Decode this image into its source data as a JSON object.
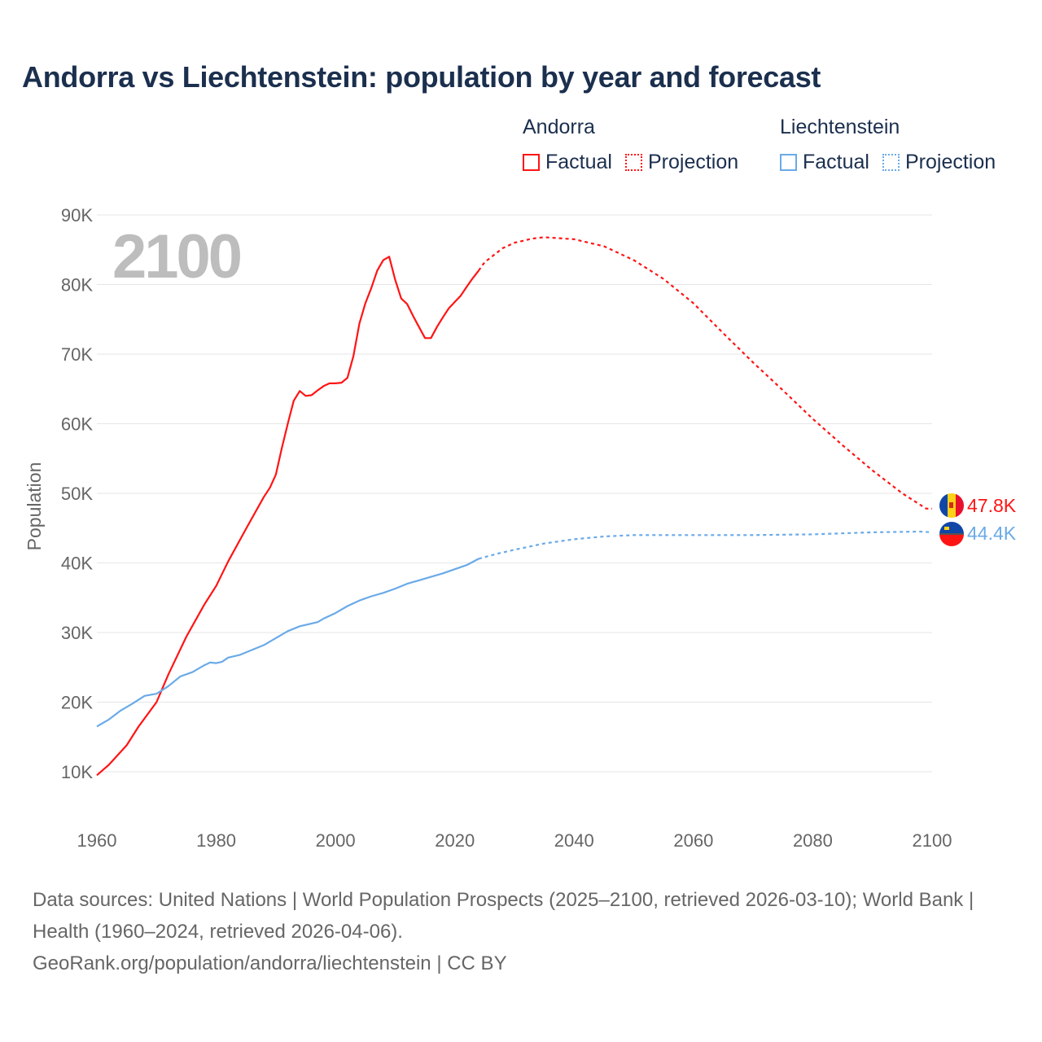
{
  "title": "Andorra vs Liechtenstein: population by year and forecast",
  "legend": {
    "groups": [
      {
        "name": "Andorra",
        "factual": "Factual",
        "projection": "Projection",
        "color": "#ff1414"
      },
      {
        "name": "Liechtenstein",
        "factual": "Factual",
        "projection": "Projection",
        "color": "#6aaae8"
      }
    ]
  },
  "year_overlay": "2100",
  "footer": {
    "sources": "Data sources: United Nations | World Population Prospects (2025–2100, retrieved 2026-03-10); World Bank | Health (1960–2024, retrieved 2026-04-06).",
    "credit": "GeoRank.org/population/andorra/liechtenstein | CC BY"
  },
  "chart_data": {
    "type": "line",
    "title": "Andorra vs Liechtenstein: population by year and forecast",
    "xlabel": "",
    "ylabel": "Population",
    "xlim": [
      1960,
      2100
    ],
    "ylim": [
      10000,
      90000
    ],
    "x_ticks": [
      1960,
      1980,
      2000,
      2020,
      2040,
      2060,
      2080,
      2100
    ],
    "x_tick_labels": [
      "1960",
      "1980",
      "2000",
      "2020",
      "2040",
      "2060",
      "2080",
      "2100"
    ],
    "y_ticks": [
      10000,
      20000,
      30000,
      40000,
      50000,
      60000,
      70000,
      80000,
      90000
    ],
    "y_tick_labels": [
      "10K",
      "20K",
      "30K",
      "40K",
      "50K",
      "60K",
      "70K",
      "80K",
      "90K"
    ],
    "grid": true,
    "legend_position": "top-right",
    "series": [
      {
        "name": "Andorra",
        "color": "#ff1414",
        "end_label": "47.8K",
        "factual": [
          [
            1960,
            9500
          ],
          [
            1962,
            11000
          ],
          [
            1965,
            13800
          ],
          [
            1967,
            16500
          ],
          [
            1970,
            20000
          ],
          [
            1972,
            24000
          ],
          [
            1975,
            29400
          ],
          [
            1978,
            34000
          ],
          [
            1980,
            36700
          ],
          [
            1982,
            40200
          ],
          [
            1985,
            44900
          ],
          [
            1988,
            49500
          ],
          [
            1989,
            50800
          ],
          [
            1990,
            52700
          ],
          [
            1991,
            56500
          ],
          [
            1992,
            60000
          ],
          [
            1993,
            63300
          ],
          [
            1994,
            64700
          ],
          [
            1995,
            64000
          ],
          [
            1996,
            64100
          ],
          [
            1997,
            64800
          ],
          [
            1998,
            65400
          ],
          [
            1999,
            65800
          ],
          [
            2000,
            65800
          ],
          [
            2001,
            65900
          ],
          [
            2002,
            66600
          ],
          [
            2003,
            69700
          ],
          [
            2004,
            74400
          ],
          [
            2005,
            77300
          ],
          [
            2006,
            79500
          ],
          [
            2007,
            82000
          ],
          [
            2008,
            83500
          ],
          [
            2009,
            84000
          ],
          [
            2010,
            80700
          ],
          [
            2011,
            78000
          ],
          [
            2012,
            77200
          ],
          [
            2013,
            75500
          ],
          [
            2014,
            73900
          ],
          [
            2015,
            72300
          ],
          [
            2016,
            72300
          ],
          [
            2017,
            73900
          ],
          [
            2018,
            75300
          ],
          [
            2019,
            76600
          ],
          [
            2020,
            77500
          ],
          [
            2021,
            78400
          ],
          [
            2022,
            79700
          ],
          [
            2023,
            80900
          ],
          [
            2024,
            82000
          ]
        ],
        "projection": [
          [
            2024,
            82000
          ],
          [
            2025,
            83200
          ],
          [
            2028,
            85200
          ],
          [
            2030,
            86000
          ],
          [
            2033,
            86600
          ],
          [
            2035,
            86800
          ],
          [
            2040,
            86500
          ],
          [
            2045,
            85500
          ],
          [
            2050,
            83500
          ],
          [
            2055,
            80800
          ],
          [
            2060,
            77300
          ],
          [
            2065,
            73000
          ],
          [
            2070,
            68800
          ],
          [
            2075,
            64800
          ],
          [
            2080,
            60700
          ],
          [
            2085,
            56900
          ],
          [
            2090,
            53300
          ],
          [
            2095,
            50000
          ],
          [
            2099,
            47800
          ],
          [
            2100,
            47800
          ]
        ]
      },
      {
        "name": "Liechtenstein",
        "color": "#6aaae8",
        "end_label": "44.4K",
        "factual": [
          [
            1960,
            16500
          ],
          [
            1962,
            17500
          ],
          [
            1964,
            18800
          ],
          [
            1966,
            19800
          ],
          [
            1968,
            20900
          ],
          [
            1970,
            21200
          ],
          [
            1972,
            22300
          ],
          [
            1974,
            23700
          ],
          [
            1976,
            24300
          ],
          [
            1978,
            25300
          ],
          [
            1979,
            25700
          ],
          [
            1980,
            25600
          ],
          [
            1981,
            25800
          ],
          [
            1982,
            26400
          ],
          [
            1984,
            26800
          ],
          [
            1986,
            27500
          ],
          [
            1988,
            28200
          ],
          [
            1990,
            29200
          ],
          [
            1992,
            30200
          ],
          [
            1994,
            30900
          ],
          [
            1996,
            31300
          ],
          [
            1997,
            31500
          ],
          [
            1998,
            32000
          ],
          [
            2000,
            32800
          ],
          [
            2002,
            33800
          ],
          [
            2004,
            34600
          ],
          [
            2006,
            35200
          ],
          [
            2008,
            35700
          ],
          [
            2010,
            36300
          ],
          [
            2012,
            37000
          ],
          [
            2014,
            37500
          ],
          [
            2016,
            38000
          ],
          [
            2018,
            38500
          ],
          [
            2020,
            39100
          ],
          [
            2022,
            39700
          ],
          [
            2024,
            40600
          ]
        ],
        "projection": [
          [
            2024,
            40600
          ],
          [
            2027,
            41300
          ],
          [
            2030,
            41900
          ],
          [
            2035,
            42800
          ],
          [
            2040,
            43400
          ],
          [
            2045,
            43800
          ],
          [
            2050,
            44000
          ],
          [
            2060,
            44000
          ],
          [
            2070,
            44000
          ],
          [
            2080,
            44100
          ],
          [
            2090,
            44400
          ],
          [
            2098,
            44500
          ],
          [
            2100,
            44400
          ]
        ]
      }
    ]
  }
}
